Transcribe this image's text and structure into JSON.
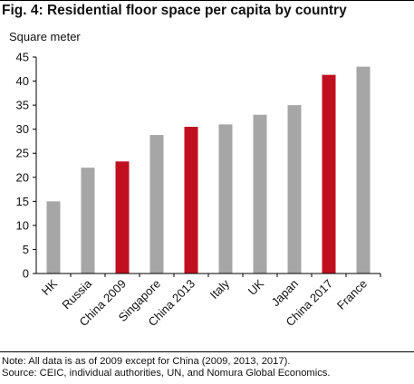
{
  "chart_data": {
    "type": "bar",
    "title": "Fig. 4: Residential floor space per capita by country",
    "ylabel": "Square meter",
    "xlabel": "",
    "categories": [
      "HK",
      "Russia",
      "China 2009",
      "Singapore",
      "China 2013",
      "Italy",
      "UK",
      "Japan",
      "China 2017",
      "France"
    ],
    "values": [
      15,
      22,
      23.3,
      28.8,
      30.5,
      31,
      33,
      35,
      41.3,
      43
    ],
    "ylim": [
      0,
      45
    ],
    "yticks": [
      0,
      5,
      10,
      15,
      20,
      25,
      30,
      35,
      40,
      45
    ],
    "grid": false,
    "colors": {
      "default": "#a6a6a6",
      "highlight": "#c0101f"
    },
    "highlighted_categories": [
      "China 2009",
      "China 2013",
      "China 2017"
    ]
  },
  "note": "Note: All data is as of 2009 except for China (2009, 2013, 2017).",
  "source": "Source: CEIC, individual authorities, UN, and Nomura Global Economics."
}
